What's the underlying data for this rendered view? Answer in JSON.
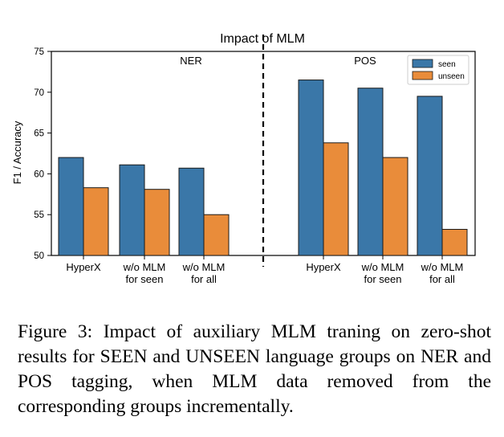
{
  "chart_data": {
    "type": "bar",
    "title": "Impact of MLM",
    "ylabel": "F1 / Accuracy",
    "xlabel": "",
    "ylim": [
      50,
      75
    ],
    "yticks": [
      50,
      55,
      60,
      65,
      70,
      75
    ],
    "legend": {
      "placement": "top-right",
      "entries": [
        "seen",
        "unseen"
      ]
    },
    "colors": {
      "seen": "#3a77a8",
      "unseen": "#e98c3a"
    },
    "grid": false,
    "panels": [
      {
        "label": "NER",
        "categories": [
          "HyperX",
          "w/o MLM\nfor seen",
          "w/o MLM\nfor all"
        ],
        "series": [
          {
            "name": "seen",
            "values": [
              62.0,
              61.1,
              60.7
            ]
          },
          {
            "name": "unseen",
            "values": [
              58.3,
              58.1,
              55.0
            ]
          }
        ]
      },
      {
        "label": "POS",
        "categories": [
          "HyperX",
          "w/o MLM\nfor seen",
          "w/o MLM\nfor all"
        ],
        "series": [
          {
            "name": "seen",
            "values": [
              71.5,
              70.5,
              69.5
            ]
          },
          {
            "name": "unseen",
            "values": [
              63.8,
              62.0,
              53.2
            ]
          }
        ]
      }
    ]
  },
  "caption": {
    "prefix": "Figure 3: Impact of auxiliary MLM traning on zero-shot results for ",
    "seen": "SEEN",
    "middle": " and ",
    "unseen": "UNSEEN",
    "suffix": " language groups on NER and POS tagging, when MLM data removed from the corresponding groups incrementally."
  }
}
